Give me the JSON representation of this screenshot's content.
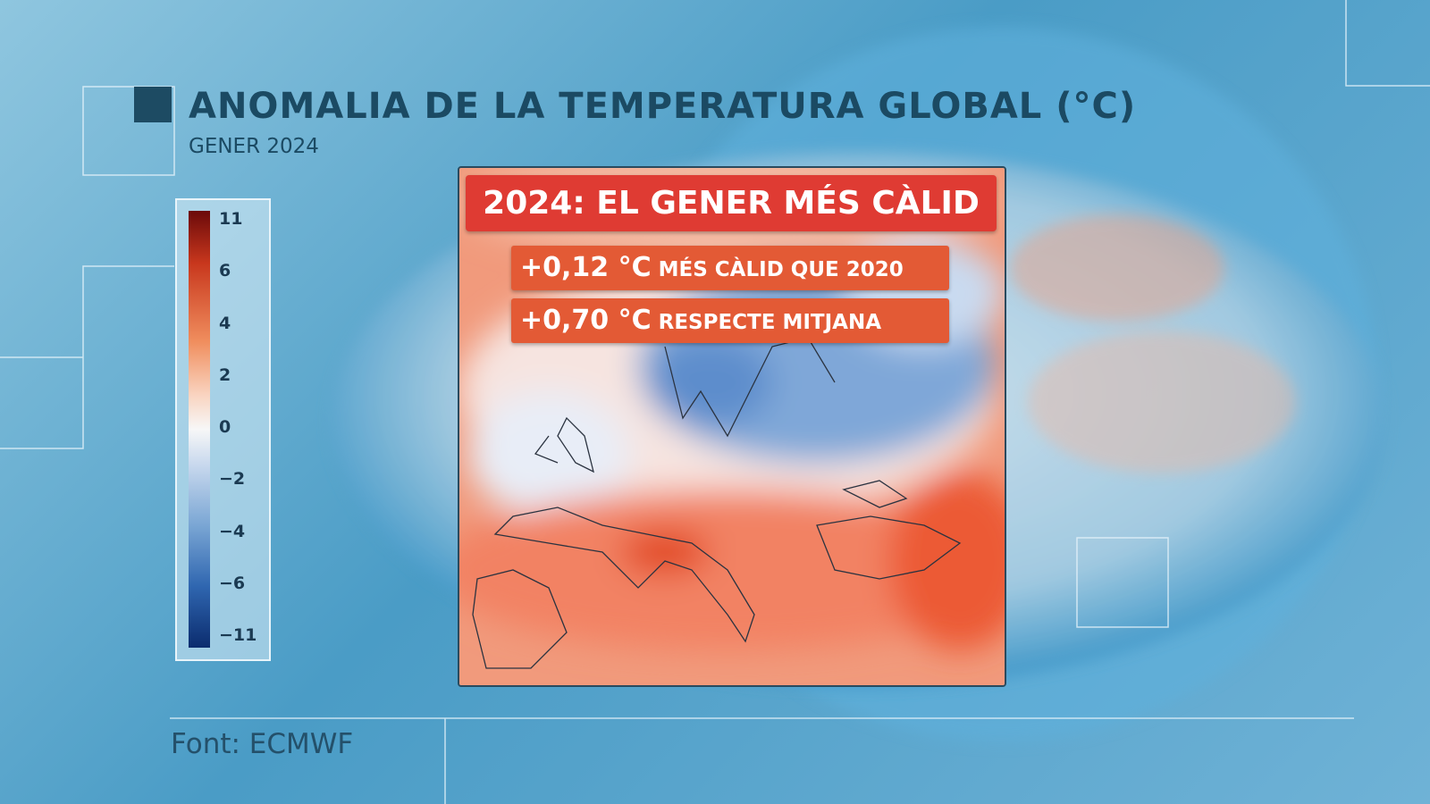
{
  "header": {
    "title": "ANOMALIA DE LA TEMPERATURA GLOBAL (°C)",
    "subtitle": "GENER 2024"
  },
  "colorbar": {
    "labels": [
      "11",
      "6",
      "4",
      "2",
      "0",
      "−2",
      "−4",
      "−6",
      "−11"
    ]
  },
  "map": {
    "headline": "2024: EL GENER MÉS CÀLID",
    "facts": [
      {
        "value": "+0,12 °C",
        "text": "MÉS CÀLID QUE 2020"
      },
      {
        "value": "+0,70 °C",
        "text": "RESPECTE MITJANA"
      }
    ]
  },
  "footer": {
    "source": "Font: ECMWF"
  }
}
